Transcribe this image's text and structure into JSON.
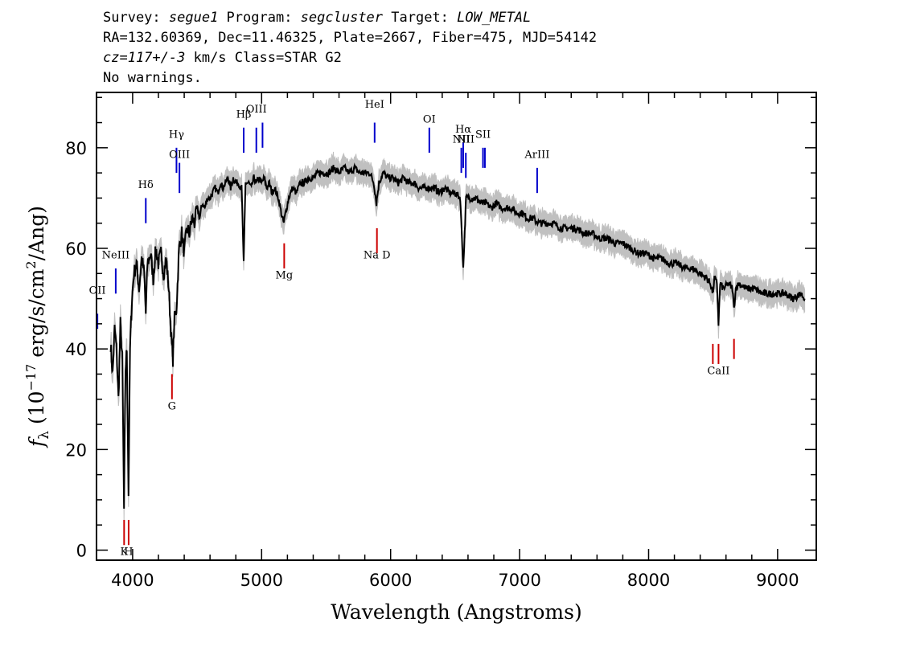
{
  "header": {
    "line1": {
      "survey_label": "Survey: ",
      "survey": "segue1",
      "program_label": " Program: ",
      "program": "segcluster",
      "target_label": " Target: ",
      "target": "LOW_METAL"
    },
    "line2": "RA=132.60369, Dec=11.46325, Plate=2667, Fiber=475, MJD=54142",
    "line3": {
      "cz": "cz=117+/-3",
      "rest": " km/s Class=STAR G2"
    },
    "line4": "No warnings."
  },
  "chart_data": {
    "type": "line",
    "title": "",
    "xlabel": "Wavelength (Angstroms)",
    "ylabel": "f_λ (10^-17 erg/s/cm²/Ang)",
    "xlim": [
      3720,
      9300
    ],
    "ylim": [
      -2,
      91
    ],
    "xticks": [
      4000,
      5000,
      6000,
      7000,
      8000,
      9000
    ],
    "yticks": [
      0,
      20,
      40,
      60,
      80
    ],
    "colors": {
      "flux": "#000000",
      "error_band": "#c0c0c0",
      "emission": "#0000cc",
      "absorption": "#cc0000"
    },
    "series": [
      {
        "role": "flux",
        "points": [
          [
            3830,
            41
          ],
          [
            3845,
            35
          ],
          [
            3860,
            44
          ],
          [
            3875,
            40
          ],
          [
            3890,
            30
          ],
          [
            3905,
            45
          ],
          [
            3920,
            38
          ],
          [
            3933,
            8
          ],
          [
            3945,
            36
          ],
          [
            3955,
            40
          ],
          [
            3968,
            11
          ],
          [
            3980,
            40
          ],
          [
            3995,
            50
          ],
          [
            4010,
            55
          ],
          [
            4030,
            57
          ],
          [
            4050,
            52
          ],
          [
            4070,
            58
          ],
          [
            4090,
            55
          ],
          [
            4102,
            47
          ],
          [
            4115,
            57
          ],
          [
            4140,
            59
          ],
          [
            4160,
            54
          ],
          [
            4180,
            60
          ],
          [
            4200,
            57
          ],
          [
            4220,
            59
          ],
          [
            4240,
            55
          ],
          [
            4260,
            58
          ],
          [
            4280,
            52
          ],
          [
            4300,
            42
          ],
          [
            4312,
            38
          ],
          [
            4325,
            46
          ],
          [
            4340,
            48
          ],
          [
            4360,
            60
          ],
          [
            4380,
            63
          ],
          [
            4400,
            59
          ],
          [
            4420,
            64
          ],
          [
            4440,
            63
          ],
          [
            4460,
            66
          ],
          [
            4480,
            65
          ],
          [
            4500,
            68
          ],
          [
            4520,
            66
          ],
          [
            4540,
            69
          ],
          [
            4560,
            68
          ],
          [
            4580,
            70
          ],
          [
            4600,
            70
          ],
          [
            4620,
            71
          ],
          [
            4640,
            72
          ],
          [
            4660,
            71
          ],
          [
            4680,
            73
          ],
          [
            4700,
            72
          ],
          [
            4720,
            73
          ],
          [
            4740,
            74
          ],
          [
            4760,
            72
          ],
          [
            4780,
            74
          ],
          [
            4800,
            73
          ],
          [
            4820,
            73
          ],
          [
            4845,
            72
          ],
          [
            4861,
            57
          ],
          [
            4875,
            73
          ],
          [
            4900,
            73
          ],
          [
            4920,
            72
          ],
          [
            4940,
            74
          ],
          [
            4960,
            73
          ],
          [
            4980,
            74
          ],
          [
            5000,
            73
          ],
          [
            5020,
            74
          ],
          [
            5040,
            72
          ],
          [
            5060,
            73
          ],
          [
            5080,
            71
          ],
          [
            5100,
            72
          ],
          [
            5130,
            70
          ],
          [
            5160,
            66
          ],
          [
            5172,
            65
          ],
          [
            5185,
            67
          ],
          [
            5210,
            70
          ],
          [
            5240,
            72
          ],
          [
            5270,
            71
          ],
          [
            5300,
            73
          ],
          [
            5330,
            73
          ],
          [
            5360,
            74
          ],
          [
            5400,
            74
          ],
          [
            5440,
            75
          ],
          [
            5480,
            75
          ],
          [
            5520,
            75
          ],
          [
            5560,
            76
          ],
          [
            5600,
            75
          ],
          [
            5640,
            76
          ],
          [
            5680,
            75
          ],
          [
            5720,
            76
          ],
          [
            5760,
            75
          ],
          [
            5800,
            75
          ],
          [
            5840,
            75
          ],
          [
            5870,
            73
          ],
          [
            5890,
            69
          ],
          [
            5910,
            73
          ],
          [
            5940,
            75
          ],
          [
            5980,
            74
          ],
          [
            6020,
            74
          ],
          [
            6060,
            73
          ],
          [
            6100,
            74
          ],
          [
            6140,
            73
          ],
          [
            6180,
            73
          ],
          [
            6220,
            72
          ],
          [
            6260,
            72
          ],
          [
            6300,
            72
          ],
          [
            6340,
            72
          ],
          [
            6380,
            71
          ],
          [
            6420,
            72
          ],
          [
            6460,
            71
          ],
          [
            6500,
            71
          ],
          [
            6540,
            70
          ],
          [
            6563,
            56
          ],
          [
            6585,
            70
          ],
          [
            6620,
            70
          ],
          [
            6660,
            70
          ],
          [
            6700,
            69
          ],
          [
            6740,
            69
          ],
          [
            6780,
            68
          ],
          [
            6820,
            69
          ],
          [
            6860,
            68
          ],
          [
            6900,
            68
          ],
          [
            6940,
            68
          ],
          [
            6980,
            67
          ],
          [
            7020,
            67
          ],
          [
            7060,
            66
          ],
          [
            7100,
            66
          ],
          [
            7150,
            65
          ],
          [
            7200,
            65
          ],
          [
            7260,
            65
          ],
          [
            7320,
            64
          ],
          [
            7380,
            64
          ],
          [
            7440,
            64
          ],
          [
            7500,
            63
          ],
          [
            7560,
            63
          ],
          [
            7620,
            62
          ],
          [
            7680,
            62
          ],
          [
            7740,
            61
          ],
          [
            7800,
            61
          ],
          [
            7860,
            60
          ],
          [
            7920,
            59
          ],
          [
            7980,
            59
          ],
          [
            8040,
            58
          ],
          [
            8100,
            58
          ],
          [
            8160,
            57
          ],
          [
            8220,
            57
          ],
          [
            8280,
            56
          ],
          [
            8340,
            56
          ],
          [
            8400,
            55
          ],
          [
            8450,
            54
          ],
          [
            8480,
            53
          ],
          [
            8498,
            51
          ],
          [
            8510,
            54
          ],
          [
            8530,
            53
          ],
          [
            8542,
            45
          ],
          [
            8555,
            53
          ],
          [
            8580,
            52
          ],
          [
            8620,
            53
          ],
          [
            8650,
            52
          ],
          [
            8662,
            48
          ],
          [
            8675,
            52
          ],
          [
            8700,
            53
          ],
          [
            8760,
            52
          ],
          [
            8820,
            52
          ],
          [
            8880,
            51
          ],
          [
            8940,
            51
          ],
          [
            9000,
            51
          ],
          [
            9060,
            51
          ],
          [
            9120,
            50
          ],
          [
            9180,
            51
          ],
          [
            9210,
            50
          ]
        ]
      }
    ],
    "line_markers": [
      {
        "label": "OII",
        "wave": 3727,
        "kind": "emission",
        "y_top": 47,
        "y_bottom": 44,
        "label_y": 51
      },
      {
        "label": "NeIII",
        "wave": 3869,
        "kind": "emission",
        "y_top": 56,
        "y_bottom": 51,
        "label_y": 58
      },
      {
        "label": "Hδ",
        "wave": 4102,
        "kind": "emission",
        "y_top": 70,
        "y_bottom": 65,
        "label_y": 72
      },
      {
        "label": "Hγ",
        "wave": 4340,
        "kind": "emission",
        "y_top": 80,
        "y_bottom": 75,
        "label_y": 82
      },
      {
        "label": "OIII",
        "wave": 4363,
        "kind": "emission",
        "y_top": 77,
        "y_bottom": 71,
        "label_y": 78
      },
      {
        "label": "Hβ",
        "wave": 4861,
        "kind": "emission",
        "y_top": 84,
        "y_bottom": 79,
        "label_y": 86
      },
      {
        "label": "OIII",
        "wave": 4959,
        "kind": "emission",
        "y_top": 84,
        "y_bottom": 79,
        "label_y": 87
      },
      {
        "label": "",
        "wave": 5007,
        "kind": "emission",
        "y_top": 85,
        "y_bottom": 80,
        "label_y": 0
      },
      {
        "label": "HeI",
        "wave": 5876,
        "kind": "emission",
        "y_top": 85,
        "y_bottom": 81,
        "label_y": 88
      },
      {
        "label": "OI",
        "wave": 6300,
        "kind": "emission",
        "y_top": 84,
        "y_bottom": 79,
        "label_y": 85
      },
      {
        "label": "NII",
        "wave": 6548,
        "kind": "emission",
        "y_top": 80,
        "y_bottom": 75,
        "label_y": 81
      },
      {
        "label": "Hα",
        "wave": 6563,
        "kind": "emission",
        "y_top": 81,
        "y_bottom": 76,
        "label_y": 83
      },
      {
        "label": "NII",
        "wave": 6583,
        "kind": "emission",
        "y_top": 79,
        "y_bottom": 74,
        "label_y": 81
      },
      {
        "label": "SII",
        "wave": 6716,
        "kind": "emission",
        "y_top": 80,
        "y_bottom": 76,
        "label_y": 82
      },
      {
        "label": "",
        "wave": 6731,
        "kind": "emission",
        "y_top": 80,
        "y_bottom": 76,
        "label_y": 0
      },
      {
        "label": "ArIII",
        "wave": 7136,
        "kind": "emission",
        "y_top": 76,
        "y_bottom": 71,
        "label_y": 78
      },
      {
        "label": "K",
        "wave": 3934,
        "kind": "absorption",
        "y_top": 6,
        "y_bottom": 1,
        "label_y": -1
      },
      {
        "label": "H",
        "wave": 3969,
        "kind": "absorption",
        "y_top": 6,
        "y_bottom": 1,
        "label_y": -1
      },
      {
        "label": "G",
        "wave": 4305,
        "kind": "absorption",
        "y_top": 35,
        "y_bottom": 30,
        "label_y": 28
      },
      {
        "label": "Mg",
        "wave": 5175,
        "kind": "absorption",
        "y_top": 61,
        "y_bottom": 56,
        "label_y": 54
      },
      {
        "label": "Na D",
        "wave": 5894,
        "kind": "absorption",
        "y_top": 64,
        "y_bottom": 59,
        "label_y": 58
      },
      {
        "label": "",
        "wave": 8498,
        "kind": "absorption",
        "y_top": 41,
        "y_bottom": 37,
        "label_y": 0
      },
      {
        "label": "CaII",
        "wave": 8542,
        "kind": "absorption",
        "y_top": 41,
        "y_bottom": 37,
        "label_y": 35
      },
      {
        "label": "",
        "wave": 8662,
        "kind": "absorption",
        "y_top": 42,
        "y_bottom": 38,
        "label_y": 0
      }
    ]
  }
}
